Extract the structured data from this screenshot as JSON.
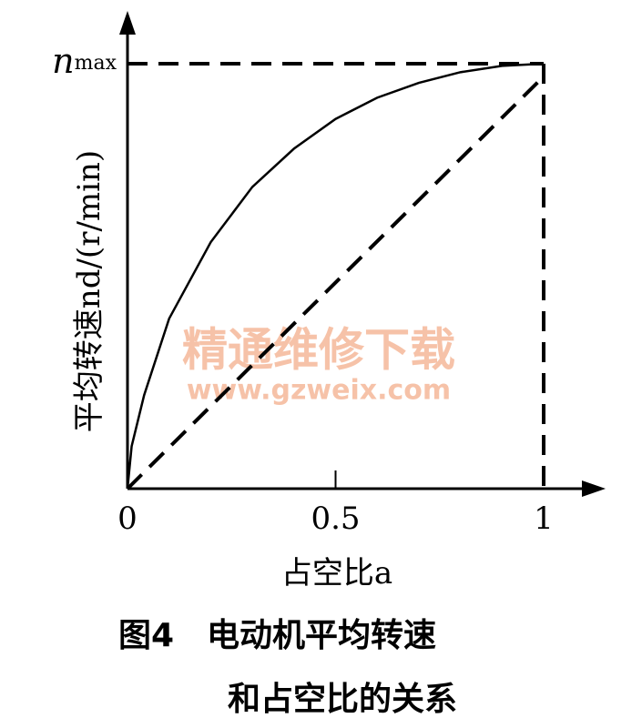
{
  "chart_data": {
    "type": "line",
    "title": "图4　电动机平均转速",
    "subtitle": "和占空比的关系",
    "x_label": "占空比a",
    "y_label": "平均转速nd/(r/min)",
    "annotations": [
      "精通维修下载",
      "www.gzweix.com"
    ],
    "xlim": [
      0,
      1
    ],
    "ylim": [
      0,
      1
    ],
    "xticks": [
      0,
      0.5,
      1
    ],
    "yticks": [
      {
        "value": 1,
        "label": "nmax"
      }
    ],
    "series": [
      {
        "style": "solid",
        "color": "#000000",
        "x": [
          0,
          0.01,
          0.04,
          0.1,
          0.2,
          0.3,
          0.4,
          0.5,
          0.6,
          0.7,
          0.8,
          0.9,
          1
        ],
        "values": [
          0,
          0.1,
          0.22,
          0.4,
          0.58,
          0.71,
          0.8,
          0.87,
          0.92,
          0.955,
          0.98,
          0.995,
          1
        ]
      },
      {
        "style": "dashed",
        "color": "#000000",
        "x": [
          0,
          1
        ],
        "values": [
          0,
          0.97
        ]
      }
    ]
  }
}
